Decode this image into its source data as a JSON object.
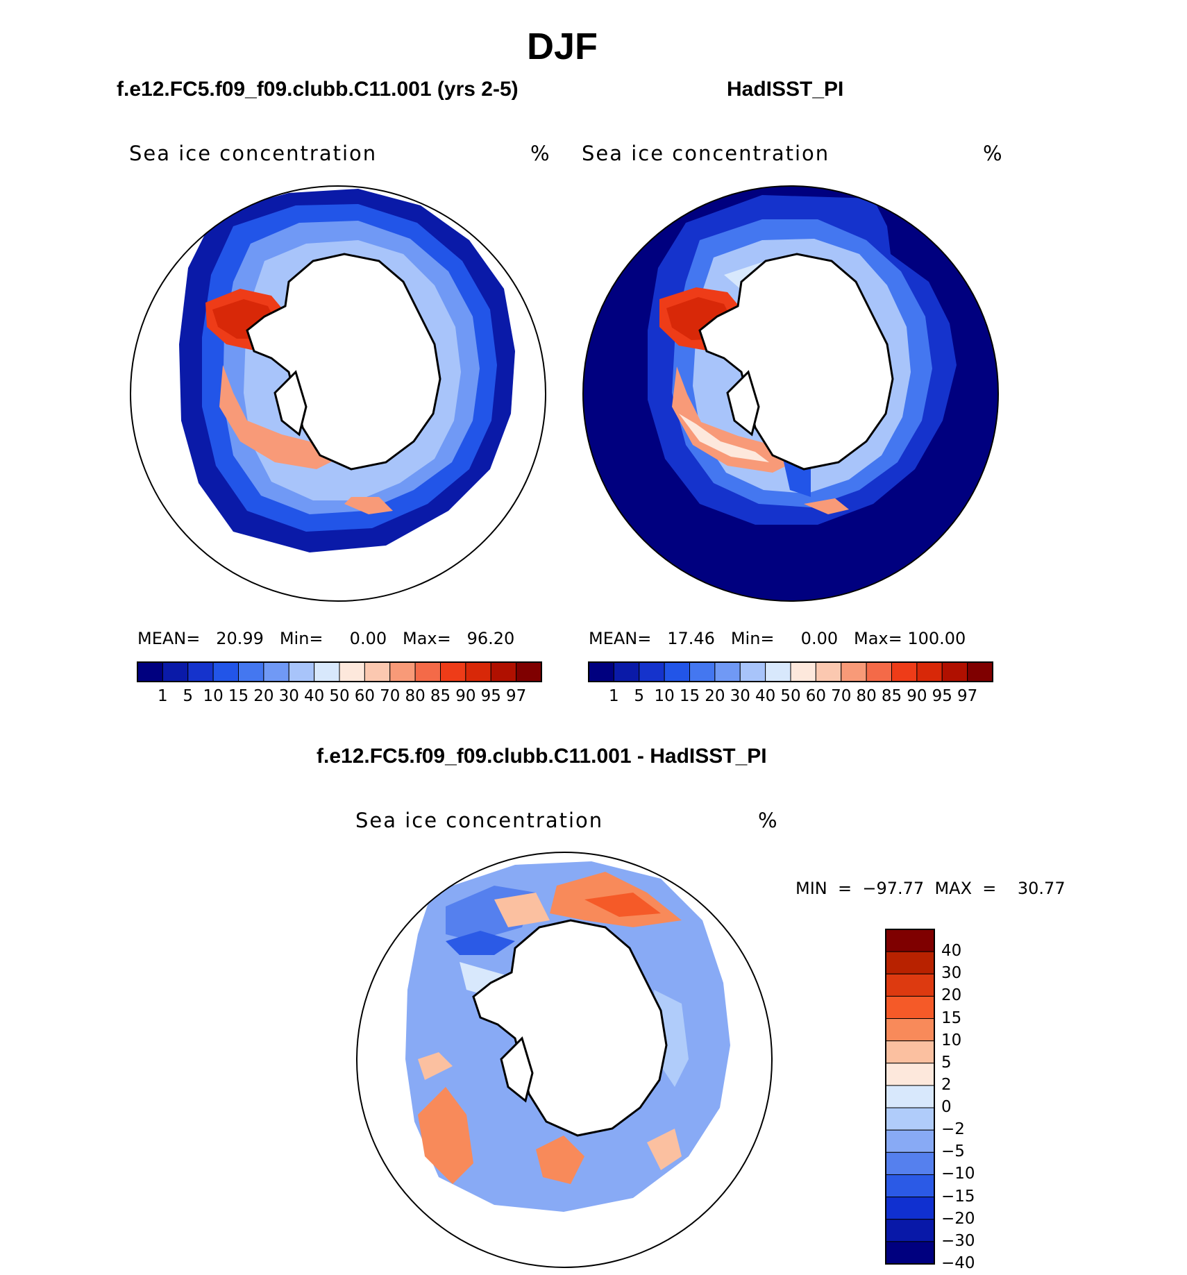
{
  "title": "DJF",
  "panels": {
    "model": {
      "title": "f.e12.FC5.f09_f09.clubb.C11.001 (yrs 2-5)",
      "field_label": "Sea ice concentration",
      "units": "%",
      "stats": "MEAN=   20.99   Min=     0.00   Max=   96.20"
    },
    "obs": {
      "title": "HadISST_PI",
      "field_label": "Sea ice concentration",
      "units": "%",
      "stats": "MEAN=   17.46   Min=     0.00   Max= 100.00"
    },
    "diff": {
      "title": "f.e12.FC5.f09_f09.clubb.C11.001 - HadISST_PI",
      "field_label": "Sea ice concentration",
      "units": "%",
      "stats": "MIN  =  −97.77  MAX  =    30.77"
    }
  },
  "colorbar_abs": {
    "colors": [
      "#00007f",
      "#0a1aa8",
      "#1533cc",
      "#2255e8",
      "#4477f0",
      "#7099f5",
      "#a8c4fa",
      "#d8e8fc",
      "#fde8dc",
      "#fbc8b0",
      "#f89a78",
      "#f46a48",
      "#ee3c18",
      "#d82808",
      "#b01000",
      "#7f0000"
    ],
    "labels": [
      "1",
      "5",
      "10",
      "15",
      "20",
      "30",
      "40",
      "50",
      "60",
      "70",
      "80",
      "85",
      "90",
      "95",
      "97"
    ]
  },
  "colorbar_diff": {
    "colors": [
      "#7f0000",
      "#b82200",
      "#dd3a10",
      "#f55a28",
      "#f88a5a",
      "#fbc0a0",
      "#fde8dc",
      "#d8e8fc",
      "#b0ccfa",
      "#88aaf5",
      "#5580ee",
      "#2b5ae6",
      "#1030d0",
      "#0818a8",
      "#00007f"
    ],
    "labels": [
      "40",
      "30",
      "20",
      "15",
      "10",
      "5",
      "2",
      "0",
      "−2",
      "−5",
      "−10",
      "−15",
      "−20",
      "−30",
      "−40"
    ]
  }
}
